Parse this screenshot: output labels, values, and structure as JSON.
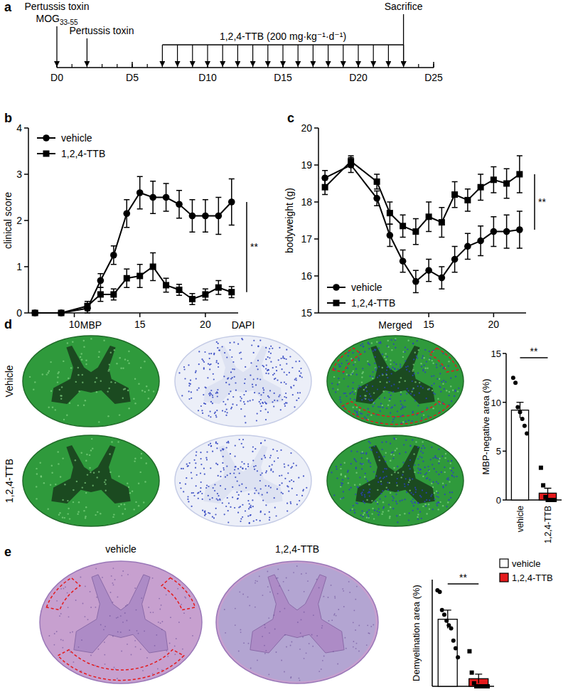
{
  "panels": [
    "a",
    "b",
    "c",
    "d",
    "e"
  ],
  "timeline": {
    "xlim": [
      0,
      25
    ],
    "ticks": [
      {
        "value": 0,
        "label": "D0"
      },
      {
        "value": 5,
        "label": "D5"
      },
      {
        "value": 10,
        "label": "D10"
      },
      {
        "value": 15,
        "label": "D15"
      },
      {
        "value": 20,
        "label": "D20"
      },
      {
        "value": 25,
        "label": "D25"
      }
    ],
    "events": [
      {
        "day": 0,
        "label": "Pertussis toxin"
      },
      {
        "day": 0,
        "label": "MOG",
        "sub": "33-55"
      },
      {
        "day": 2,
        "label": "Pertussis toxin"
      },
      {
        "day": 23,
        "label": "Sacrifice"
      }
    ],
    "treatment": {
      "start": 7,
      "end": 23,
      "label": "1,2,4-TTB (200 mg·kg⁻¹·d⁻¹)"
    }
  },
  "chart_data": [
    {
      "type": "line",
      "y_label": "clinical score",
      "x": [
        7,
        9,
        11,
        12,
        13,
        14,
        15,
        16,
        17,
        18,
        19,
        20,
        21,
        22
      ],
      "xlim": [
        6.5,
        22.5
      ],
      "xticks": [
        10,
        15,
        20
      ],
      "ylim": [
        0,
        4
      ],
      "yticks": [
        0,
        1,
        2,
        3,
        4
      ],
      "legend": "top-left",
      "annotations": [
        "**"
      ],
      "series": [
        {
          "name": "vehicle",
          "color": "#000000",
          "marker": "circle",
          "values": [
            0,
            0,
            0.1,
            0.7,
            1.25,
            2.15,
            2.6,
            2.5,
            2.5,
            2.35,
            2.1,
            2.1,
            2.1,
            2.4
          ],
          "errors": [
            0,
            0,
            0.1,
            0.15,
            0.2,
            0.3,
            0.35,
            0.35,
            0.3,
            0.3,
            0.35,
            0.35,
            0.4,
            0.5
          ]
        },
        {
          "name": "1,2,4-TTB",
          "color": "#000000",
          "marker": "square",
          "values": [
            0,
            0,
            0.15,
            0.4,
            0.4,
            0.75,
            0.8,
            1.0,
            0.6,
            0.5,
            0.3,
            0.4,
            0.55,
            0.45
          ],
          "errors": [
            0,
            0,
            0.1,
            0.15,
            0.12,
            0.2,
            0.25,
            0.3,
            0.15,
            0.12,
            0.12,
            0.12,
            0.15,
            0.12
          ]
        }
      ]
    },
    {
      "type": "line",
      "y_label": "bodyweight (g)",
      "x": [
        7,
        9,
        11,
        12,
        13,
        14,
        15,
        16,
        17,
        18,
        19,
        20,
        21,
        22
      ],
      "xlim": [
        6.5,
        22.5
      ],
      "xticks": [
        15,
        20
      ],
      "ylim": [
        15,
        20
      ],
      "yticks": [
        15,
        16,
        17,
        18,
        19,
        20
      ],
      "legend": "bottom-left",
      "annotations": [
        "**"
      ],
      "series": [
        {
          "name": "vehicle",
          "color": "#000000",
          "marker": "circle",
          "values": [
            18.65,
            19.0,
            18.1,
            17.1,
            16.4,
            15.85,
            16.15,
            15.95,
            16.45,
            16.8,
            16.95,
            17.2,
            17.2,
            17.25
          ],
          "errors": [
            0.2,
            0.2,
            0.2,
            0.3,
            0.3,
            0.3,
            0.3,
            0.3,
            0.35,
            0.35,
            0.4,
            0.4,
            0.45,
            0.5
          ]
        },
        {
          "name": "1,2,4-TTB",
          "color": "#000000",
          "marker": "square",
          "values": [
            18.4,
            19.1,
            18.55,
            17.7,
            17.35,
            17.2,
            17.6,
            17.45,
            18.2,
            18.05,
            18.4,
            18.6,
            18.5,
            18.75
          ],
          "errors": [
            0.2,
            0.15,
            0.2,
            0.3,
            0.3,
            0.35,
            0.4,
            0.4,
            0.35,
            0.3,
            0.35,
            0.35,
            0.4,
            0.5
          ]
        }
      ]
    },
    {
      "type": "bar",
      "y_label": "MBP-negative area (%)",
      "categories": [
        "vehicle",
        "1,2,4-TTB"
      ],
      "values": [
        9.2,
        0.7
      ],
      "errors": [
        0.8,
        0.5
      ],
      "points": [
        [
          12.5,
          12.0,
          9.5,
          9.0,
          8.3,
          7.6,
          6.8
        ],
        [
          3.3,
          1.5,
          0.3,
          0,
          0,
          0,
          0
        ]
      ],
      "colors": [
        "#ffffff",
        "#e41a1c"
      ],
      "ylim": [
        0,
        15
      ],
      "yticks": [
        0,
        5,
        10,
        15
      ],
      "annotations": [
        "**"
      ]
    },
    {
      "type": "bar",
      "y_label": "Demyelination area (%)",
      "categories": [
        "vehicle",
        "1,2,4-TTB"
      ],
      "values": [
        4.4,
        0.5
      ],
      "errors": [
        0.6,
        0.3
      ],
      "points": [
        [
          6.3,
          6.2,
          5.0,
          4.7,
          4.3,
          4.0,
          3.8,
          3.0,
          2.5,
          1.9
        ],
        [
          2.3,
          0.9,
          0.2,
          0,
          0,
          0,
          0,
          0,
          0
        ]
      ],
      "colors": [
        "#ffffff",
        "#e41a1c"
      ],
      "ylim": [
        0,
        7
      ],
      "tick_labels": false,
      "legend": "top-right",
      "annotations": [
        "**"
      ]
    }
  ],
  "images": {
    "d": {
      "columns": [
        "MBP",
        "DAPI",
        "Merged"
      ],
      "rows": [
        "Vehicle",
        "1,2,4-TTB"
      ]
    },
    "e": {
      "columns": [
        "vehicle",
        "1,2,4-TTB"
      ]
    }
  }
}
